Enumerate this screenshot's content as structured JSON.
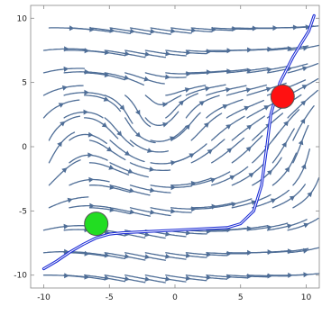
{
  "chart_data": {
    "type": "streamplot",
    "xlim": [
      -11,
      11
    ],
    "ylim": [
      -11,
      11
    ],
    "x_ticks": [
      -10,
      -5,
      0,
      5,
      10
    ],
    "y_ticks": [
      -10,
      -5,
      0,
      5,
      10
    ],
    "x_tick_labels": [
      "-10",
      "-5",
      "0",
      "5",
      "10"
    ],
    "y_tick_labels": [
      "10",
      "5",
      "0",
      "-5",
      "-10"
    ],
    "grid": false,
    "colors": {
      "streamlines": "#4f6e97",
      "trajectory": "#1f2fd6",
      "start_marker": "#22dd22",
      "end_marker": "#ff1111"
    },
    "markers": [
      {
        "name": "start",
        "x": -6.0,
        "y": -6.0,
        "color": "#22dd22"
      },
      {
        "name": "end",
        "x": 8.2,
        "y": 3.9,
        "color": "#ff1111"
      }
    ],
    "trajectory": [
      [
        -10,
        -9.5
      ],
      [
        -9,
        -8.9
      ],
      [
        -8,
        -8.2
      ],
      [
        -7,
        -7.6
      ],
      [
        -6,
        -7.1
      ],
      [
        -5,
        -6.8
      ],
      [
        -4,
        -6.7
      ],
      [
        -2,
        -6.6
      ],
      [
        0,
        -6.5
      ],
      [
        2,
        -6.4
      ],
      [
        4,
        -6.3
      ],
      [
        5,
        -6.0
      ],
      [
        6,
        -5.0
      ],
      [
        6.6,
        -3.0
      ],
      [
        7.0,
        0.0
      ],
      [
        7.3,
        2.5
      ],
      [
        8.0,
        5.0
      ],
      [
        9.0,
        7.0
      ],
      [
        10.2,
        9.0
      ],
      [
        10.6,
        10.2
      ]
    ]
  }
}
